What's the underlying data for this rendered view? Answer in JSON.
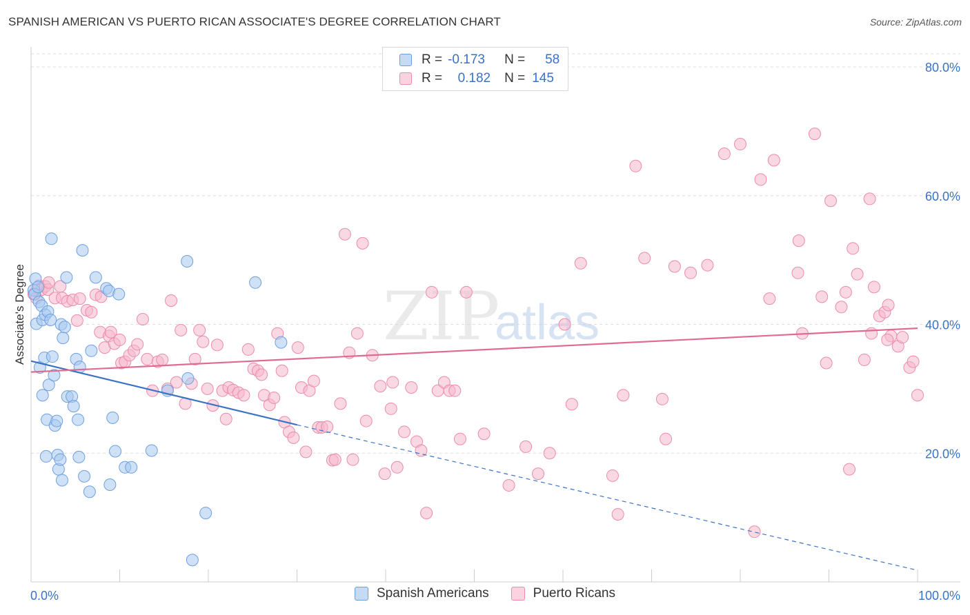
{
  "header": {
    "title": "SPANISH AMERICAN VS PUERTO RICAN ASSOCIATE'S DEGREE CORRELATION CHART",
    "source": "Source: ZipAtlas.com"
  },
  "watermark": {
    "zip": "ZIP",
    "atlas": "atlas"
  },
  "legend_top": {
    "rows": [
      {
        "r_label": "R =",
        "r_value": "-0.173",
        "n_label": "N =",
        "n_value": "58"
      },
      {
        "r_label": "R =",
        "r_value": "0.182",
        "n_label": "N =",
        "n_value": "145"
      }
    ]
  },
  "legend_bottom": {
    "items": [
      "Spanish Americans",
      "Puerto Ricans"
    ]
  },
  "colors": {
    "blue_fill": "#a8c8f0",
    "blue_stroke": "#6d9fe0",
    "blue_line": "#3a72c4",
    "pink_fill": "#f6b8cc",
    "pink_stroke": "#ec8aaa",
    "pink_line": "#e06a94",
    "axis_label": "#3a72c4",
    "grid": "#dddddd"
  },
  "chart_data": {
    "type": "scatter",
    "title": "SPANISH AMERICAN VS PUERTO RICAN ASSOCIATE'S DEGREE CORRELATION CHART",
    "xlabel": "",
    "ylabel": "Associate's Degree",
    "xlim": [
      0,
      100
    ],
    "ylim": [
      0,
      85
    ],
    "x_tick_labels": [
      "0.0%",
      "100.0%"
    ],
    "y_ticks": [
      20,
      40,
      60,
      80
    ],
    "y_tick_labels": [
      "20.0%",
      "40.0%",
      "60.0%",
      "80.0%"
    ],
    "grid": true,
    "legend_position": "top-center",
    "series": [
      {
        "name": "Spanish Americans",
        "color": "#a8c8f0",
        "r": -0.173,
        "n": 58,
        "trend": {
          "solid": [
            [
              0,
              34.3
            ],
            [
              30,
              24.4
            ]
          ],
          "dashed": [
            [
              30,
              24.4
            ],
            [
              100,
              1.8
            ]
          ]
        },
        "points": [
          [
            0.3,
            45.3
          ],
          [
            0.4,
            44.7
          ],
          [
            0.5,
            47.1
          ],
          [
            0.6,
            40.1
          ],
          [
            0.9,
            43.5
          ],
          [
            1.0,
            33.3
          ],
          [
            1.2,
            42.9
          ],
          [
            1.3,
            40.7
          ],
          [
            1.3,
            29.0
          ],
          [
            1.5,
            34.8
          ],
          [
            1.6,
            41.5
          ],
          [
            1.7,
            19.5
          ],
          [
            1.8,
            25.2
          ],
          [
            1.9,
            42.0
          ],
          [
            2.0,
            30.6
          ],
          [
            2.3,
            53.3
          ],
          [
            2.4,
            35.0
          ],
          [
            2.6,
            32.1
          ],
          [
            2.7,
            24.3
          ],
          [
            2.9,
            25.0
          ],
          [
            3.0,
            19.7
          ],
          [
            3.1,
            17.5
          ],
          [
            3.3,
            19.0
          ],
          [
            3.4,
            40.0
          ],
          [
            3.5,
            15.8
          ],
          [
            3.6,
            37.9
          ],
          [
            3.8,
            39.6
          ],
          [
            4.0,
            47.3
          ],
          [
            4.1,
            28.8
          ],
          [
            4.6,
            28.8
          ],
          [
            4.8,
            27.3
          ],
          [
            5.1,
            34.6
          ],
          [
            5.3,
            25.2
          ],
          [
            5.4,
            19.4
          ],
          [
            5.5,
            33.4
          ],
          [
            5.8,
            51.5
          ],
          [
            6.0,
            16.4
          ],
          [
            6.6,
            14.0
          ],
          [
            6.8,
            35.9
          ],
          [
            7.3,
            47.3
          ],
          [
            8.5,
            45.6
          ],
          [
            8.8,
            45.2
          ],
          [
            8.9,
            15.1
          ],
          [
            9.2,
            25.5
          ],
          [
            9.5,
            20.3
          ],
          [
            9.9,
            44.7
          ],
          [
            10.6,
            17.8
          ],
          [
            11.3,
            17.8
          ],
          [
            13.6,
            20.4
          ],
          [
            15.4,
            29.7
          ],
          [
            17.6,
            49.8
          ],
          [
            17.7,
            31.6
          ],
          [
            18.2,
            3.4
          ],
          [
            19.7,
            10.7
          ],
          [
            25.3,
            46.5
          ],
          [
            28.2,
            37.2
          ],
          [
            2.2,
            40.7
          ],
          [
            0.8,
            45.8
          ]
        ]
      },
      {
        "name": "Puerto Ricans",
        "color": "#f6b8cc",
        "r": 0.182,
        "n": 145,
        "trend": {
          "solid": [
            [
              0,
              32.6
            ],
            [
              100,
              39.4
            ]
          ]
        },
        "points": [
          [
            0.3,
            44.7
          ],
          [
            0.6,
            44.1
          ],
          [
            0.9,
            46.0
          ],
          [
            1.2,
            45.4
          ],
          [
            1.6,
            45.9
          ],
          [
            1.9,
            45.4
          ],
          [
            2.0,
            46.5
          ],
          [
            2.7,
            44.1
          ],
          [
            3.3,
            45.9
          ],
          [
            3.5,
            44.1
          ],
          [
            4.1,
            43.6
          ],
          [
            4.7,
            43.8
          ],
          [
            5.2,
            40.6
          ],
          [
            5.5,
            44.0
          ],
          [
            6.3,
            42.2
          ],
          [
            6.8,
            41.9
          ],
          [
            7.3,
            44.6
          ],
          [
            7.8,
            38.8
          ],
          [
            7.9,
            44.3
          ],
          [
            8.3,
            36.4
          ],
          [
            8.8,
            38.2
          ],
          [
            9.0,
            38.8
          ],
          [
            9.4,
            37.0
          ],
          [
            10.0,
            37.6
          ],
          [
            10.2,
            34.0
          ],
          [
            10.6,
            34.2
          ],
          [
            11.1,
            35.2
          ],
          [
            11.6,
            35.9
          ],
          [
            12.0,
            36.9
          ],
          [
            12.6,
            40.8
          ],
          [
            13.1,
            34.6
          ],
          [
            13.7,
            29.7
          ],
          [
            14.3,
            34.2
          ],
          [
            14.8,
            34.5
          ],
          [
            15.4,
            30.0
          ],
          [
            15.8,
            43.7
          ],
          [
            16.4,
            31.0
          ],
          [
            16.9,
            39.1
          ],
          [
            17.4,
            27.7
          ],
          [
            18.1,
            30.8
          ],
          [
            18.5,
            34.6
          ],
          [
            19.0,
            39.1
          ],
          [
            19.4,
            37.3
          ],
          [
            19.9,
            30.0
          ],
          [
            20.5,
            27.4
          ],
          [
            21.0,
            36.8
          ],
          [
            21.6,
            29.7
          ],
          [
            22.0,
            25.3
          ],
          [
            22.3,
            30.2
          ],
          [
            22.8,
            29.8
          ],
          [
            23.4,
            29.4
          ],
          [
            24.0,
            29.0
          ],
          [
            24.5,
            36.1
          ],
          [
            25.1,
            33.1
          ],
          [
            25.6,
            32.8
          ],
          [
            26.0,
            32.2
          ],
          [
            26.3,
            29.0
          ],
          [
            26.9,
            27.5
          ],
          [
            27.4,
            28.6
          ],
          [
            27.8,
            38.6
          ],
          [
            28.3,
            32.8
          ],
          [
            28.6,
            24.8
          ],
          [
            29.1,
            23.3
          ],
          [
            29.6,
            22.4
          ],
          [
            30.1,
            36.4
          ],
          [
            30.5,
            30.2
          ],
          [
            31.0,
            20.2
          ],
          [
            31.4,
            29.7
          ],
          [
            31.9,
            31.2
          ],
          [
            32.4,
            24.0
          ],
          [
            32.8,
            24.0
          ],
          [
            33.4,
            24.1
          ],
          [
            34.0,
            18.9
          ],
          [
            34.3,
            19.0
          ],
          [
            34.9,
            27.7
          ],
          [
            35.4,
            54.0
          ],
          [
            35.9,
            35.6
          ],
          [
            36.3,
            19.0
          ],
          [
            36.8,
            38.6
          ],
          [
            37.4,
            52.6
          ],
          [
            37.8,
            25.0
          ],
          [
            38.5,
            35.2
          ],
          [
            39.4,
            30.4
          ],
          [
            39.9,
            16.8
          ],
          [
            40.6,
            26.9
          ],
          [
            40.8,
            31.0
          ],
          [
            41.3,
            17.8
          ],
          [
            42.1,
            23.3
          ],
          [
            42.9,
            30.2
          ],
          [
            43.5,
            21.8
          ],
          [
            44.0,
            20.4
          ],
          [
            44.6,
            10.7
          ],
          [
            45.2,
            45.0
          ],
          [
            45.9,
            29.7
          ],
          [
            46.6,
            31.0
          ],
          [
            47.2,
            29.7
          ],
          [
            47.8,
            29.7
          ],
          [
            48.4,
            22.2
          ],
          [
            49.1,
            45.0
          ],
          [
            51.1,
            23.0
          ],
          [
            53.9,
            15.0
          ],
          [
            55.8,
            21.0
          ],
          [
            57.2,
            16.8
          ],
          [
            58.5,
            20.0
          ],
          [
            60.2,
            40.0
          ],
          [
            61.0,
            27.6
          ],
          [
            62.0,
            49.5
          ],
          [
            65.6,
            16.5
          ],
          [
            66.2,
            10.5
          ],
          [
            66.8,
            29.0
          ],
          [
            68.2,
            64.6
          ],
          [
            69.2,
            50.3
          ],
          [
            71.2,
            28.4
          ],
          [
            71.6,
            22.2
          ],
          [
            72.6,
            49.0
          ],
          [
            74.4,
            48.0
          ],
          [
            76.3,
            49.2
          ],
          [
            78.2,
            66.5
          ],
          [
            80.0,
            68.0
          ],
          [
            81.6,
            7.8
          ],
          [
            82.3,
            62.5
          ],
          [
            83.3,
            44.0
          ],
          [
            83.8,
            65.5
          ],
          [
            86.5,
            48.0
          ],
          [
            86.6,
            53.0
          ],
          [
            87.0,
            38.6
          ],
          [
            88.4,
            69.6
          ],
          [
            89.2,
            44.3
          ],
          [
            89.7,
            34.0
          ],
          [
            90.2,
            59.2
          ],
          [
            91.4,
            42.7
          ],
          [
            91.9,
            45.0
          ],
          [
            92.3,
            17.5
          ],
          [
            92.7,
            51.8
          ],
          [
            93.2,
            47.8
          ],
          [
            94.0,
            34.5
          ],
          [
            94.6,
            59.5
          ],
          [
            95.1,
            45.8
          ],
          [
            95.7,
            41.3
          ],
          [
            96.3,
            41.9
          ],
          [
            96.7,
            43.0
          ],
          [
            97.0,
            38.2
          ],
          [
            97.8,
            36.6
          ],
          [
            98.3,
            38.0
          ],
          [
            99.1,
            33.3
          ],
          [
            99.5,
            34.2
          ],
          [
            100.0,
            29.0
          ],
          [
            96.6,
            37.6
          ],
          [
            94.8,
            38.6
          ]
        ]
      }
    ]
  }
}
